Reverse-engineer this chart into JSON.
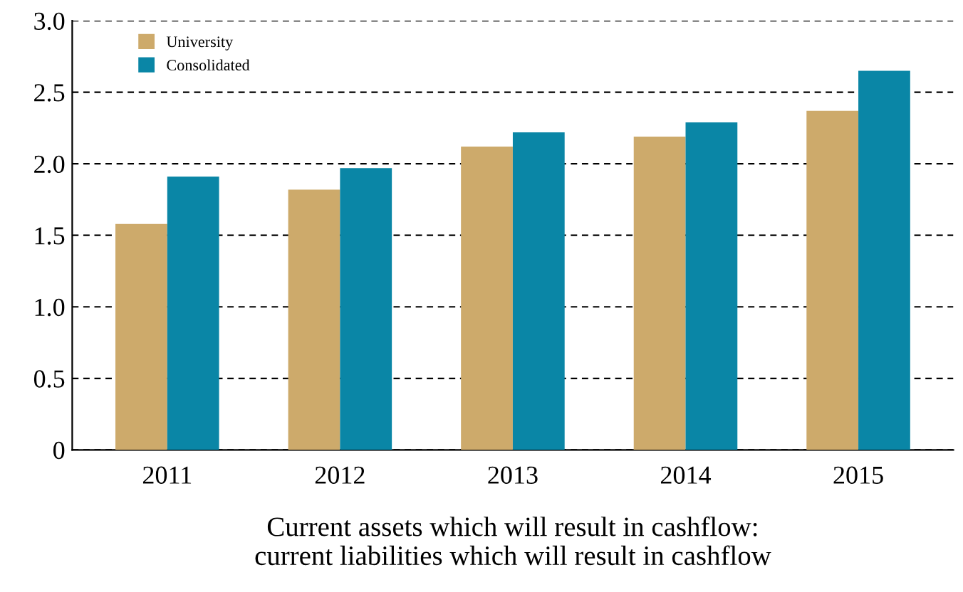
{
  "chart_data": {
    "type": "bar",
    "categories": [
      "2011",
      "2012",
      "2013",
      "2014",
      "2015"
    ],
    "series": [
      {
        "name": "University",
        "color": "#cdaa6b",
        "values": [
          1.58,
          1.82,
          2.12,
          2.19,
          2.37
        ]
      },
      {
        "name": "Consolidated",
        "color": "#0a86a6",
        "values": [
          1.91,
          1.97,
          2.22,
          2.29,
          2.65
        ]
      }
    ],
    "ylim": [
      0,
      3.0
    ],
    "yticks": [
      {
        "value": 0,
        "label": "0"
      },
      {
        "value": 0.5,
        "label": "0.5"
      },
      {
        "value": 1,
        "label": "1.0"
      },
      {
        "value": 1.5,
        "label": "1.5"
      },
      {
        "value": 2,
        "label": "2.0"
      },
      {
        "value": 2.5,
        "label": "2.5"
      },
      {
        "value": 3,
        "label": "3.0"
      }
    ],
    "grid": "y",
    "line_style": "dashed",
    "legend": "top left",
    "xlabel": "Current assets which will result in cashflow:\ncurrent liabilities which will result in cashflow"
  }
}
